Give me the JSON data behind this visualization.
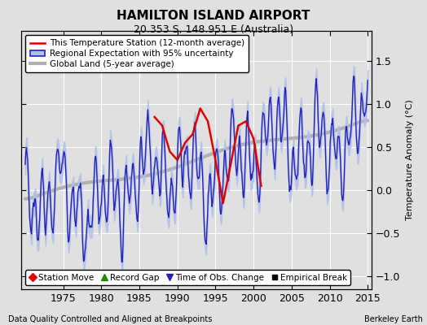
{
  "title": "HAMILTON ISLAND AIRPORT",
  "subtitle": "20.353 S, 148.951 E (Australia)",
  "ylabel": "Temperature Anomaly (°C)",
  "xlabel_note": "Data Quality Controlled and Aligned at Breakpoints",
  "credit": "Berkeley Earth",
  "ylim": [
    -1.15,
    1.85
  ],
  "yticks": [
    -1,
    -0.5,
    0,
    0.5,
    1,
    1.5
  ],
  "xlim": [
    1969.5,
    2015.5
  ],
  "xticks": [
    1975,
    1980,
    1985,
    1990,
    1995,
    2000,
    2005,
    2010,
    2015
  ],
  "bg_color": "#e0e0e0",
  "grid_color": "#ffffff",
  "station_color": "#dd0000",
  "regional_color": "#2222bb",
  "regional_fill_color": "#b0c0e8",
  "global_color": "#b0b0b0",
  "legend_items": [
    {
      "label": "This Temperature Station (12-month average)",
      "color": "#dd0000"
    },
    {
      "label": "Regional Expectation with 95% uncertainty",
      "color": "#2222bb"
    },
    {
      "label": "Global Land (5-year average)",
      "color": "#b0b0b0"
    }
  ],
  "marker_items": [
    {
      "label": "Station Move",
      "color": "#dd0000",
      "marker": "D"
    },
    {
      "label": "Record Gap",
      "color": "#228800",
      "marker": "^"
    },
    {
      "label": "Time of Obs. Change",
      "color": "#2222bb",
      "marker": "v"
    },
    {
      "label": "Empirical Break",
      "color": "#000000",
      "marker": "s"
    }
  ]
}
